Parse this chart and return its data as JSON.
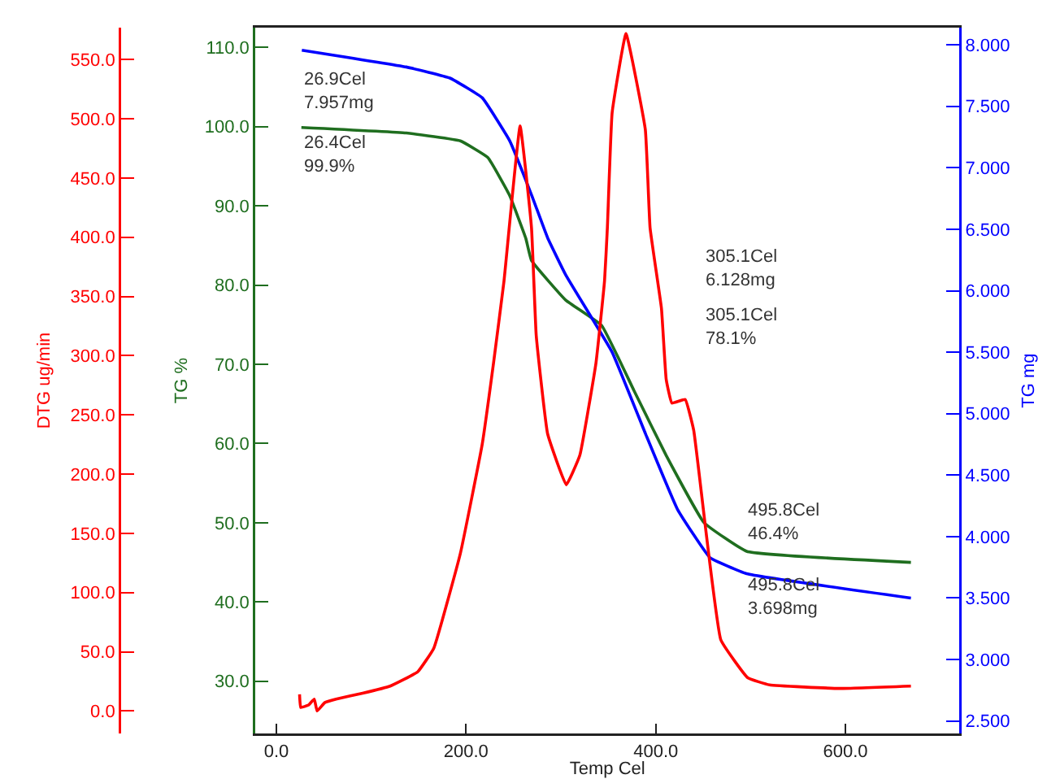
{
  "chart_data": {
    "type": "line",
    "xlabel": "Temp Cel",
    "ylabel": "TG %",
    "y2label": "TG mg",
    "y3label": "DTG ug/min",
    "xlim": [
      -22,
      720
    ],
    "xticks": [
      {
        "value": 0,
        "label": "0.0"
      },
      {
        "value": 200,
        "label": "200.0"
      },
      {
        "value": 400,
        "label": "400.0"
      },
      {
        "value": 600,
        "label": "600.0"
      }
    ],
    "ylim": [
      23.4,
      112.5
    ],
    "yticks": [
      {
        "value": 30,
        "label": "30.0"
      },
      {
        "value": 40,
        "label": "40.0"
      },
      {
        "value": 50,
        "label": "50.0"
      },
      {
        "value": 60,
        "label": "60.0"
      },
      {
        "value": 70,
        "label": "70.0"
      },
      {
        "value": 80,
        "label": "80.0"
      },
      {
        "value": 90,
        "label": "90.0"
      },
      {
        "value": 100,
        "label": "100.0"
      },
      {
        "value": 110,
        "label": "110.0"
      }
    ],
    "y2lim": [
      2.398,
      8.14
    ],
    "y2ticks": [
      {
        "value": 2.5,
        "label": "2.500"
      },
      {
        "value": 3,
        "label": "3.000"
      },
      {
        "value": 3.5,
        "label": "3.500"
      },
      {
        "value": 4,
        "label": "4.000"
      },
      {
        "value": 4.5,
        "label": "4.500"
      },
      {
        "value": 5,
        "label": "5.000"
      },
      {
        "value": 5.5,
        "label": "5.500"
      },
      {
        "value": 6,
        "label": "6.000"
      },
      {
        "value": 6.5,
        "label": "6.500"
      },
      {
        "value": 7,
        "label": "7.000"
      },
      {
        "value": 7.5,
        "label": "7.500"
      },
      {
        "value": 8,
        "label": "8.000"
      }
    ],
    "y3lim": [
      -19,
      577
    ],
    "y3ticks": [
      {
        "value": 0,
        "label": "0.0"
      },
      {
        "value": 50,
        "label": "50.0"
      },
      {
        "value": 100,
        "label": "100.0"
      },
      {
        "value": 150,
        "label": "150.0"
      },
      {
        "value": 200,
        "label": "200.0"
      },
      {
        "value": 250,
        "label": "250.0"
      },
      {
        "value": 300,
        "label": "300.0"
      },
      {
        "value": 350,
        "label": "350.0"
      },
      {
        "value": 400,
        "label": "400.0"
      },
      {
        "value": 450,
        "label": "450.0"
      },
      {
        "value": 500,
        "label": "500.0"
      },
      {
        "value": 550,
        "label": "550.0"
      }
    ],
    "grid": false,
    "marker": "none",
    "line_style": "solid",
    "series": [
      {
        "color": "#ff0000",
        "axis": "y3",
        "x": [
          24.5,
          25.7,
          34,
          40,
          43,
          51,
          63,
          91,
          120,
          149,
          166,
          194,
          217,
          229,
          240,
          257,
          269,
          274,
          286,
          305.7,
          320,
          337,
          346,
          349,
          354,
          368.6,
          389,
          394,
          406,
          411,
          417,
          431,
          440,
          468.6,
          497,
          520,
          594,
          669
        ],
        "values": [
          14,
          3,
          5,
          10,
          0,
          7,
          10,
          15,
          21,
          33,
          53,
          133,
          225,
          294,
          363,
          494,
          408,
          317,
          234,
          191,
          216,
          294,
          363,
          408,
          505,
          572,
          491,
          408,
          340,
          280,
          260,
          263,
          237,
          60,
          28,
          22,
          19,
          21
        ]
      },
      {
        "color": "#1f6e1f",
        "axis": "y",
        "x": [
          26.4,
          137,
          194,
          223,
          246,
          263,
          269,
          305.1,
          343,
          377,
          411,
          451,
          495.8,
          669
        ],
        "values": [
          99.9,
          99.2,
          98.2,
          96.1,
          91.3,
          85.9,
          83.1,
          78.1,
          74.9,
          66.7,
          58.5,
          50.0,
          46.4,
          45.0
        ]
      },
      {
        "color": "#0000ff",
        "axis": "y2",
        "x": [
          26.9,
          137,
          183,
          217,
          246,
          269,
          286,
          305.1,
          354,
          389,
          423,
          457,
          495.8,
          669
        ],
        "values": [
          7.957,
          7.82,
          7.73,
          7.57,
          7.22,
          6.78,
          6.43,
          6.128,
          5.5,
          4.84,
          4.22,
          3.83,
          3.698,
          3.5
        ]
      }
    ],
    "annotations": [
      "26.9Cel\n7.957mg",
      "26.4Cel\n99.9%",
      "305.1Cel\n6.128mg",
      "305.1Cel\n78.1%",
      "495.8Cel\n46.4%",
      "495.8Cel\n3.698mg"
    ]
  }
}
